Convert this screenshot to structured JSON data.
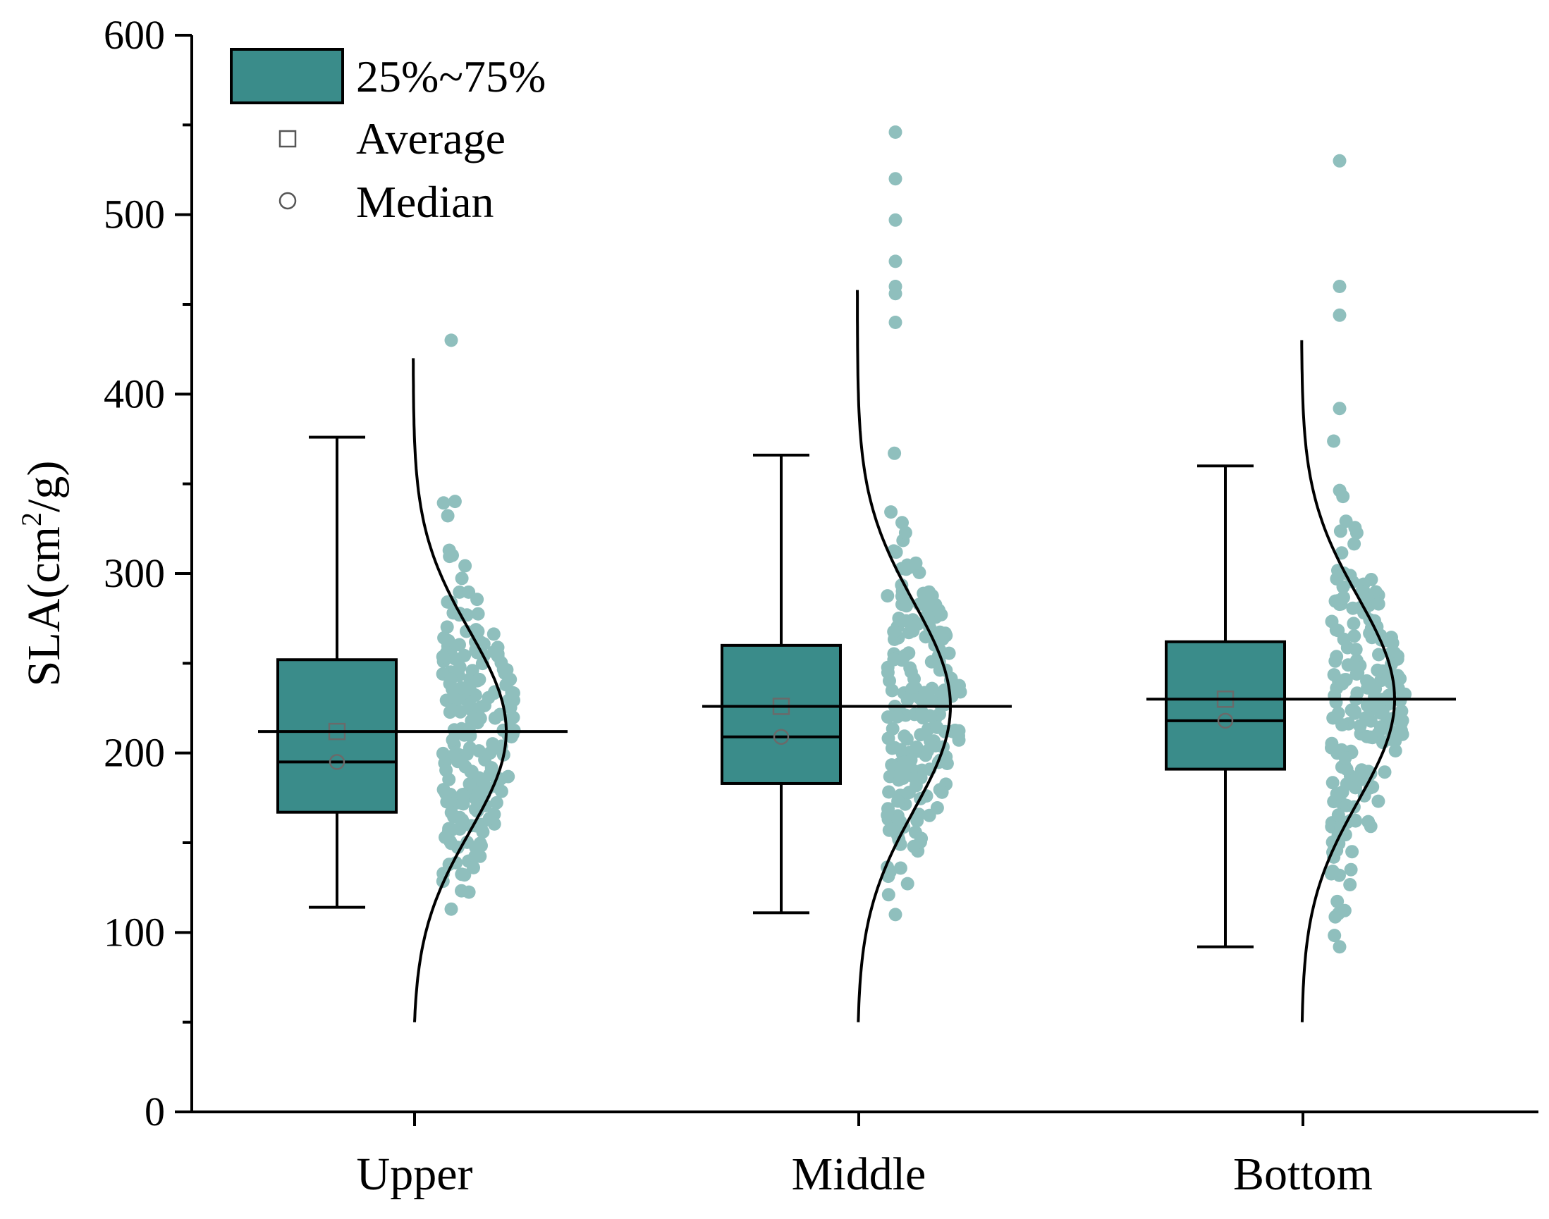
{
  "chart_data": {
    "type": "box",
    "variant": "raincloud",
    "ylabel": {
      "base": "SLA(cm",
      "sup": "2",
      "tail": "/g)"
    },
    "xlabel": "",
    "ylim": [
      0,
      600
    ],
    "yticks": [
      0,
      100,
      200,
      300,
      400,
      500,
      600
    ],
    "yticks_minor": [
      50,
      150,
      250,
      350,
      450,
      550
    ],
    "categories": [
      "Upper",
      "Middle",
      "Bottom"
    ],
    "legend": {
      "position": "top-left",
      "box": "25%~75%",
      "average": "Average",
      "median": "Median"
    },
    "colors": {
      "box_fill": "#3a8c8a",
      "points": "#8fbfbd",
      "line": "#000000"
    },
    "groups": [
      {
        "name": "Upper",
        "whisker_low": 114,
        "q1": 167,
        "median": 195,
        "mean": 212,
        "q3": 252,
        "whisker_high": 376,
        "curve_mean": 212,
        "curve_sd": 56,
        "curve_range": [
          50,
          420
        ],
        "points_range": [
          113,
          430
        ],
        "points_count": 200,
        "outliers": []
      },
      {
        "name": "Middle",
        "whisker_low": 111,
        "q1": 183,
        "median": 209,
        "mean": 226,
        "q3": 260,
        "whisker_high": 366,
        "curve_mean": 226,
        "curve_sd": 58,
        "curve_range": [
          50,
          458
        ],
        "points_range": [
          110,
          440
        ],
        "points_count": 200,
        "outliers": [
          456,
          460,
          474,
          497,
          520,
          546
        ]
      },
      {
        "name": "Bottom",
        "whisker_low": 92,
        "q1": 191,
        "median": 218,
        "mean": 230,
        "q3": 262,
        "whisker_high": 360,
        "curve_mean": 230,
        "curve_sd": 57,
        "curve_range": [
          50,
          430
        ],
        "points_range": [
          92,
          392
        ],
        "points_count": 200,
        "outliers": [
          444,
          460,
          530
        ]
      }
    ]
  }
}
